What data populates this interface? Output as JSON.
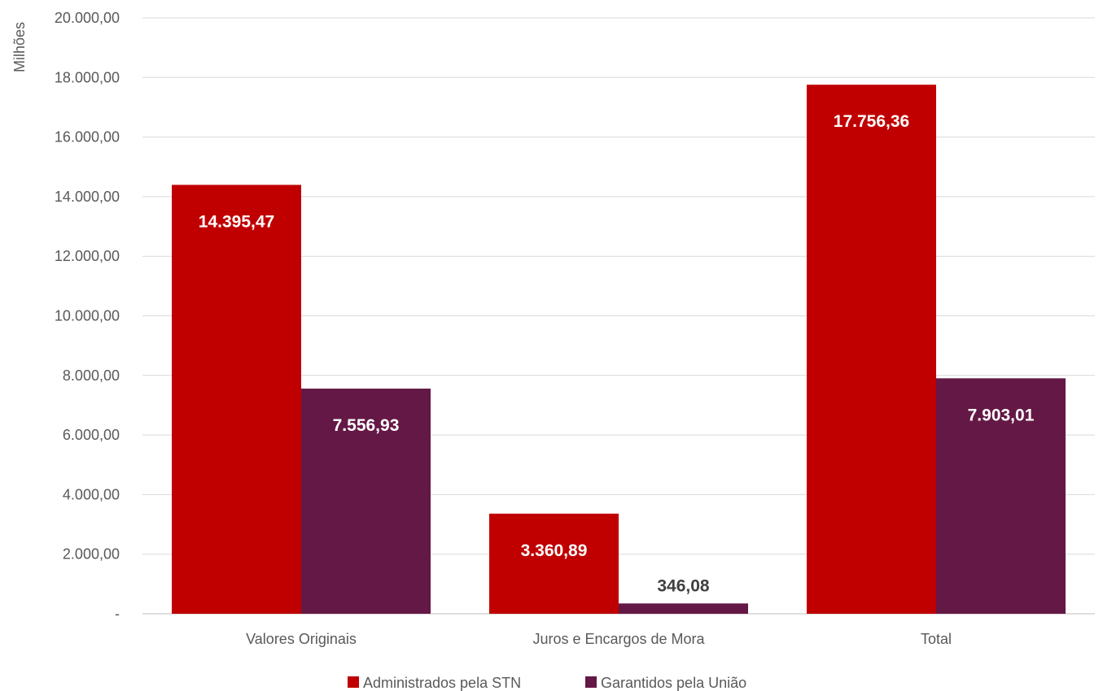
{
  "chart_data": {
    "type": "bar",
    "categories": [
      "Valores Originais",
      "Juros e Encargos de Mora",
      "Total"
    ],
    "series": [
      {
        "name": "Administrados pela STN",
        "values": [
          14395.47,
          3360.89,
          17756.36
        ],
        "labels": [
          "14.395,47",
          "3.360,89",
          "17.756,36"
        ],
        "color": "#C00000"
      },
      {
        "name": "Garantidos pela União",
        "values": [
          7556.93,
          346.08,
          7903.01
        ],
        "labels": [
          "7.556,93",
          "346,08",
          "7.903,01"
        ],
        "color": "#641845"
      }
    ],
    "ylabel": "Milhões",
    "ylim": [
      0,
      20000
    ],
    "yticks": [
      0,
      2000,
      4000,
      6000,
      8000,
      10000,
      12000,
      14000,
      16000,
      18000,
      20000
    ],
    "ytick_labels": [
      "-",
      "2.000,00",
      "4.000,00",
      "6.000,00",
      "8.000,00",
      "10.000,00",
      "12.000,00",
      "14.000,00",
      "16.000,00",
      "18.000,00",
      "20.000,00"
    ],
    "grid": true,
    "legend_position": "bottom"
  }
}
